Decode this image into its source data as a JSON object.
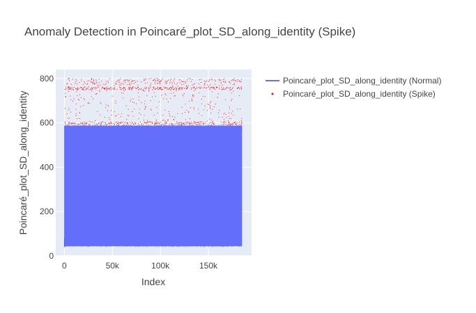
{
  "chart_data": {
    "type": "line",
    "title": "Anomaly Detection in Poincaré_plot_SD_along_identity (Spike)",
    "xlabel": "Index",
    "ylabel": "Poincaré_plot_SD_along_identity",
    "xlim": [
      -9000,
      195000
    ],
    "ylim": [
      0,
      840
    ],
    "x_ticks": [
      0,
      50000,
      100000,
      150000
    ],
    "x_tick_labels": [
      "0",
      "50k",
      "100k",
      "150k"
    ],
    "y_ticks": [
      0,
      200,
      400,
      600,
      800
    ],
    "y_tick_labels": [
      "0",
      "200",
      "400",
      "600",
      "800"
    ],
    "grid": true,
    "legend_position": "top-right-outside",
    "series": [
      {
        "name": "Poincaré_plot_SD_along_identity (Normal)",
        "mode": "lines",
        "color": "#636efa",
        "x_range": [
          0,
          185000
        ],
        "y_min": 40,
        "y_max": 595,
        "typical_top": 585,
        "typical_bottom": 45
      },
      {
        "name": "Poincaré_plot_SD_along_identity (Spike)",
        "mode": "markers",
        "color": "#ff0000",
        "x_range": [
          0,
          185000
        ],
        "y_range": [
          595,
          800
        ],
        "dense_band": [
          740,
          800
        ]
      }
    ]
  }
}
